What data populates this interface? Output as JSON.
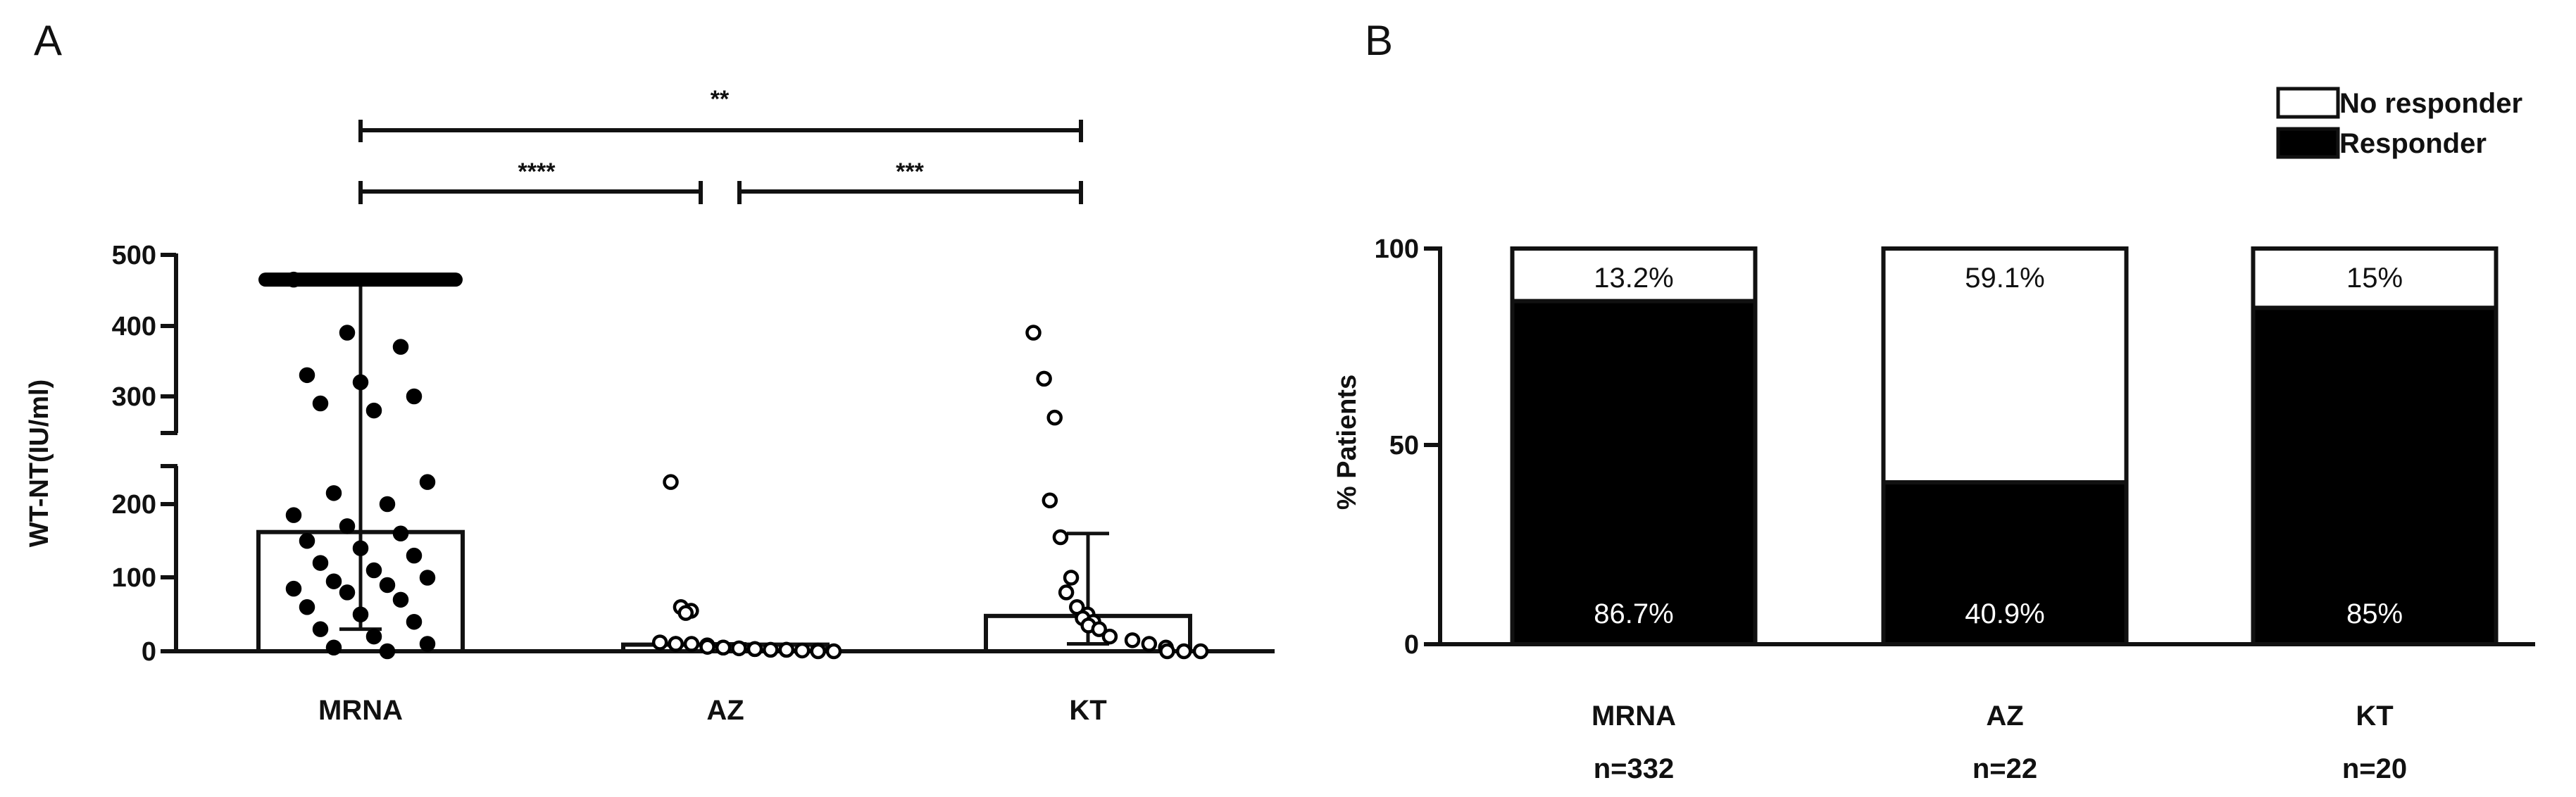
{
  "chart_data": [
    {
      "panel": "A",
      "type": "bar",
      "overlay": "scatter",
      "ylabel": "WT-NT(IU/ml)",
      "xlabel": "",
      "y_axis_break": [
        250,
        270
      ],
      "ylim": [
        0,
        500
      ],
      "yticks_lower": [
        "0",
        "100",
        "200"
      ],
      "yticks_upper": [
        "300",
        "400",
        "500"
      ],
      "categories": [
        "MRNA",
        "AZ",
        "KT"
      ],
      "values": [
        162,
        9,
        48
      ],
      "error_bars": [
        {
          "category": "MRNA",
          "low": 30,
          "high": 465
        },
        {
          "category": "AZ",
          "low": 10,
          "high": 10
        },
        {
          "category": "KT",
          "low": 10,
          "high": 160
        }
      ],
      "points": {
        "MRNA": [
          465,
          390,
          370,
          330,
          320,
          300,
          290,
          280,
          230,
          215,
          200,
          185,
          170,
          160,
          150,
          140,
          130,
          120,
          110,
          100,
          95,
          90,
          85,
          80,
          70,
          60,
          50,
          40,
          30,
          20,
          10,
          5,
          0
        ],
        "AZ": [
          230,
          60,
          55,
          52,
          12,
          10,
          10,
          10,
          8,
          6,
          5,
          5,
          4,
          3,
          3,
          2,
          2,
          2,
          1,
          1,
          0,
          0
        ],
        "KT": [
          390,
          325,
          270,
          205,
          155,
          100,
          80,
          60,
          50,
          45,
          40,
          35,
          30,
          20,
          15,
          10,
          5,
          0,
          0,
          0
        ]
      },
      "significance": [
        {
          "from": "MRNA",
          "to": "KT",
          "label": "**"
        },
        {
          "from": "MRNA",
          "to": "AZ",
          "label": "****"
        },
        {
          "from": "AZ",
          "to": "KT",
          "label": "***"
        }
      ]
    },
    {
      "panel": "B",
      "type": "bar",
      "stacked": true,
      "ylabel": "% Patients",
      "xlabel": "",
      "ylim": [
        0,
        100
      ],
      "yticks": [
        "0",
        "50",
        "100"
      ],
      "categories": [
        "MRNA",
        "AZ",
        "KT"
      ],
      "sample_sizes": [
        "n=332",
        "n=22",
        "n=20"
      ],
      "legend": [
        "No responder",
        "Responder"
      ],
      "series": [
        {
          "name": "Responder",
          "values": [
            86.7,
            40.9,
            85
          ],
          "labels": [
            "86.7%",
            "40.9%",
            "85%"
          ]
        },
        {
          "name": "No responder",
          "values": [
            13.2,
            59.1,
            15
          ],
          "labels": [
            "13.2%",
            "59.1%",
            "15%"
          ]
        }
      ]
    }
  ]
}
